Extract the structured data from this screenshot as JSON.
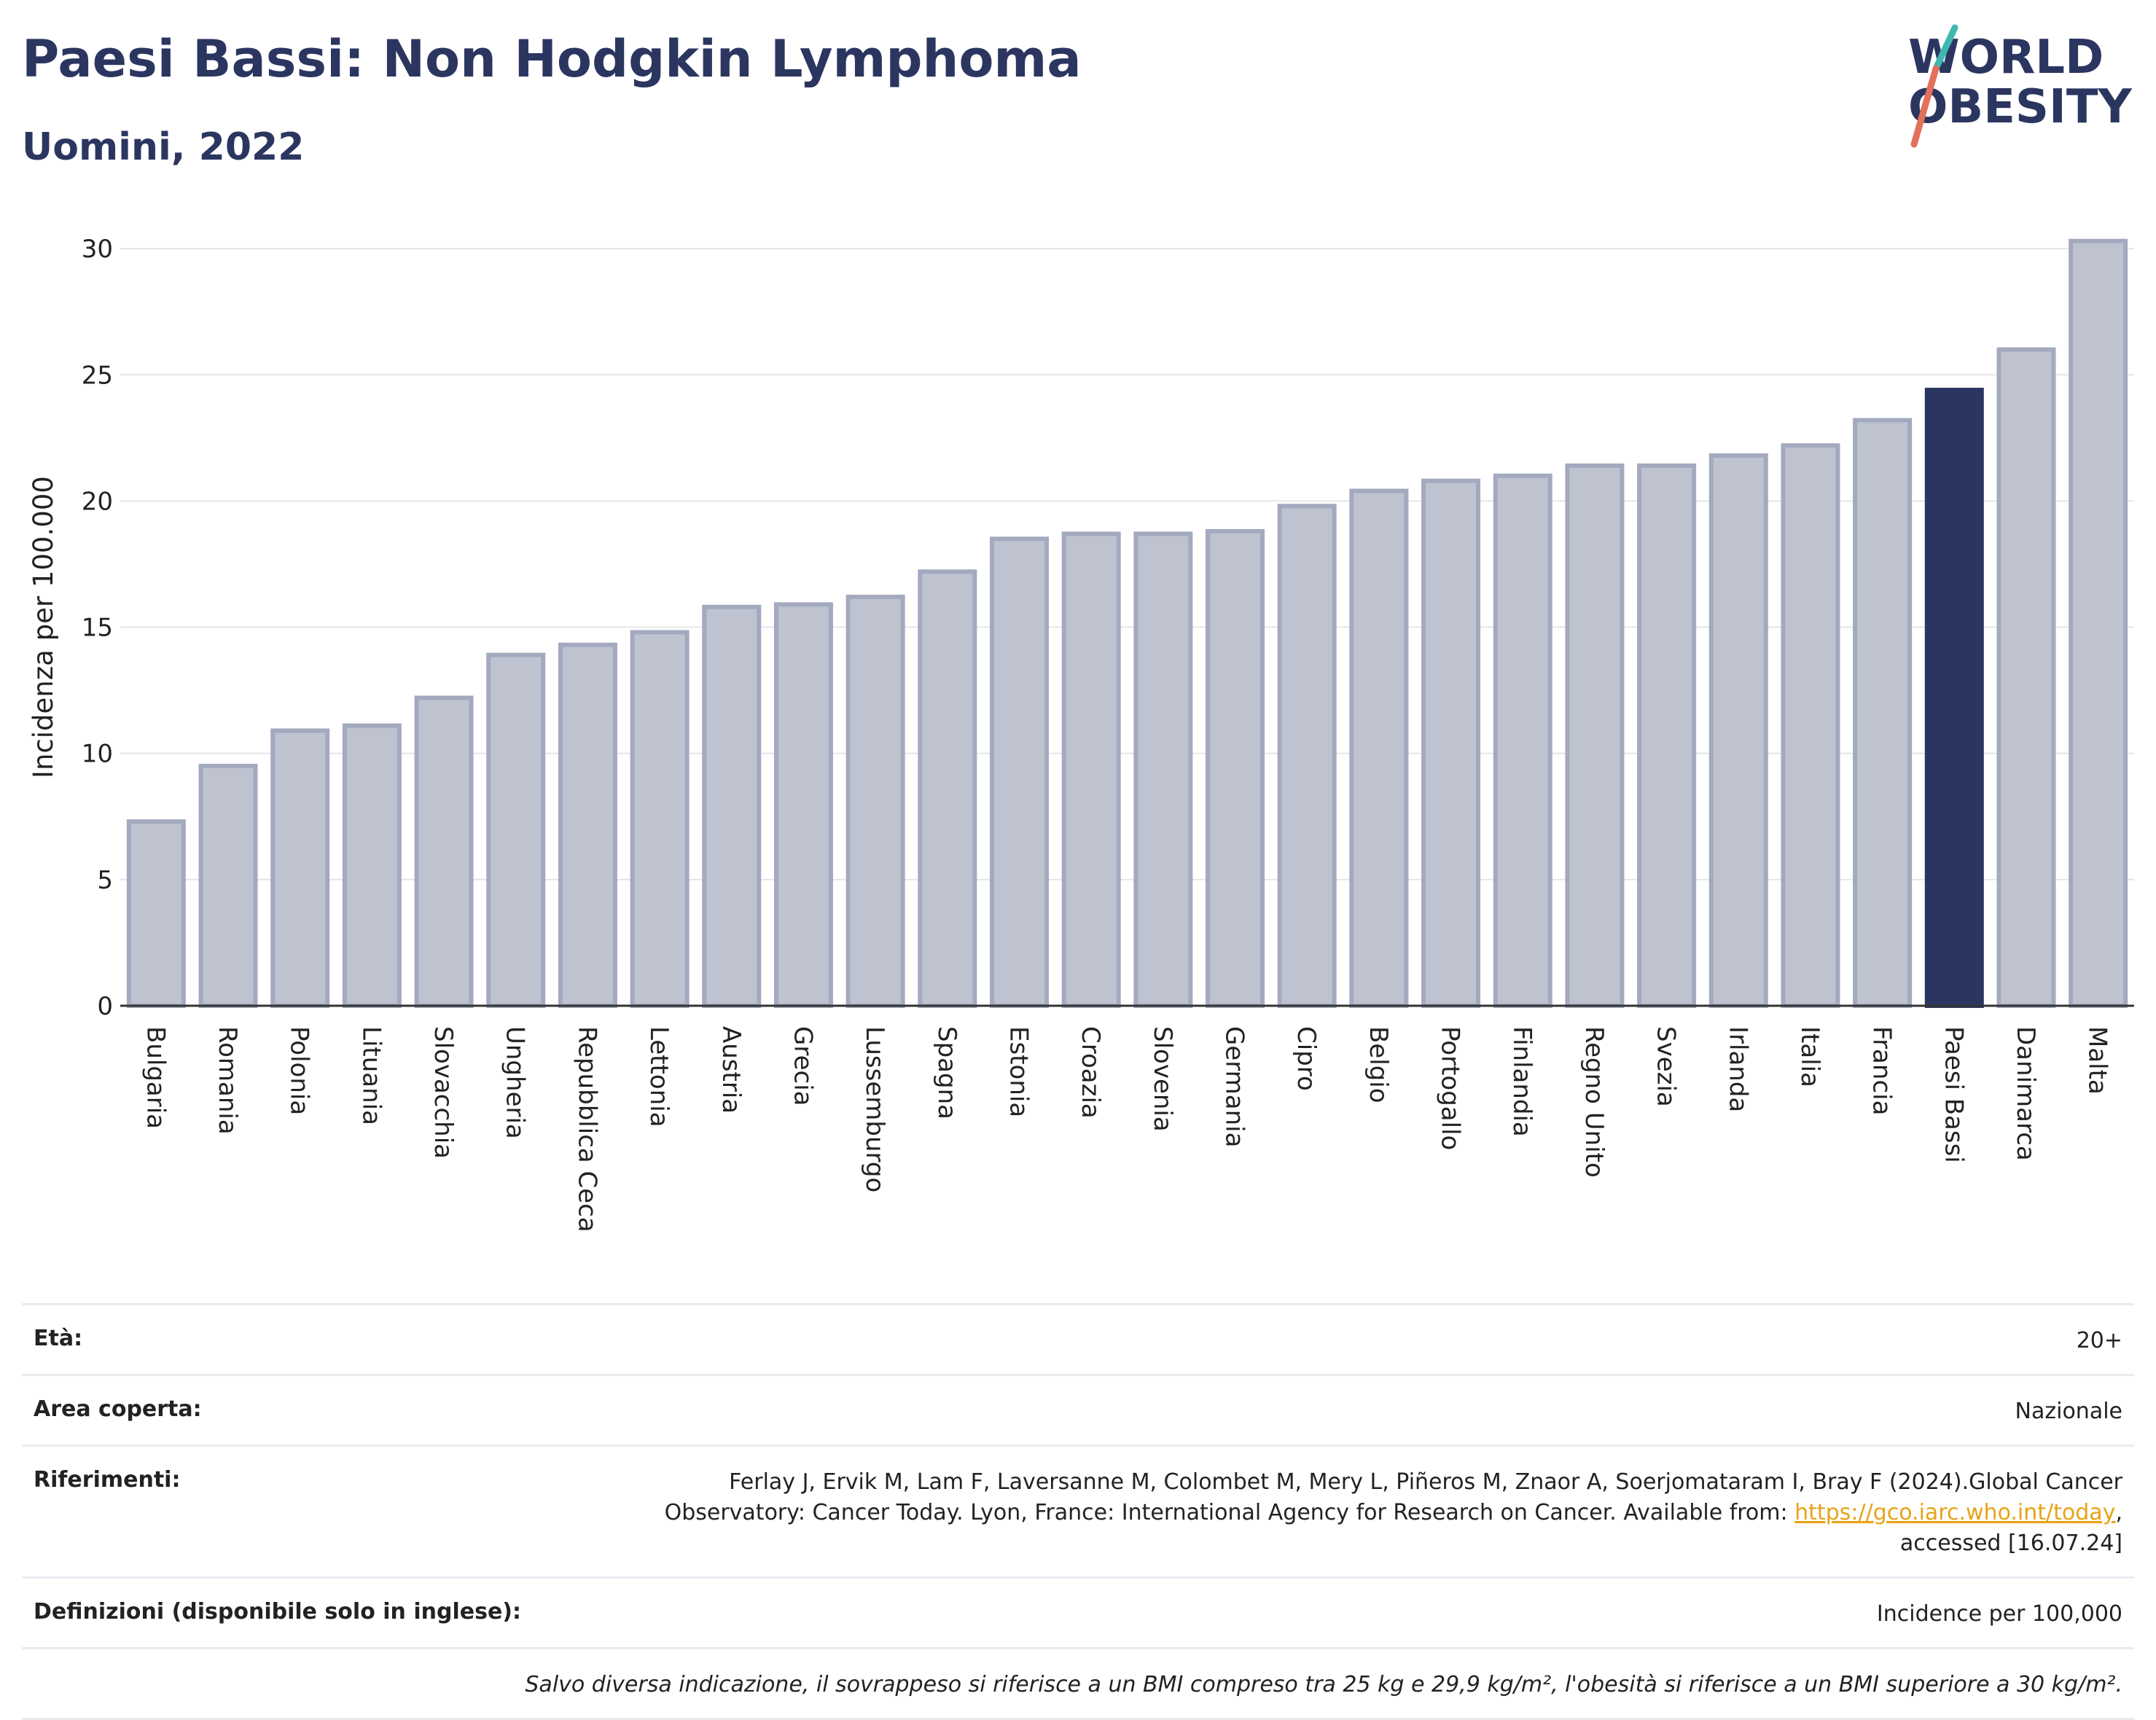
{
  "header": {
    "title": "Paesi Bassi: Non Hodgkin Lymphoma",
    "subtitle": "Uomini, 2022"
  },
  "logo": {
    "line1": "WORLD",
    "line2": "OBESITY",
    "accent_colors": [
      "#3fb8b0",
      "#e2705a"
    ]
  },
  "colors": {
    "bar_default": "#bfc3d0",
    "bar_stroke": "#a3a9be",
    "bar_highlight": "#2b3660",
    "title": "#2b3660",
    "link": "#e8a317"
  },
  "chart_data": {
    "type": "bar",
    "title": "Paesi Bassi: Non Hodgkin Lymphoma",
    "subtitle": "Uomini, 2022",
    "xlabel": "",
    "ylabel": "Incidenza per 100.000",
    "ylim": [
      0,
      30.5
    ],
    "yticks": [
      0,
      5,
      10,
      15,
      20,
      25,
      30
    ],
    "grid": true,
    "highlight": "Paesi Bassi",
    "categories": [
      "Bulgaria",
      "Romania",
      "Polonia",
      "Lituania",
      "Slovacchia",
      "Ungheria",
      "Repubblica Ceca",
      "Lettonia",
      "Austria",
      "Grecia",
      "Lussemburgo",
      "Spagna",
      "Estonia",
      "Croazia",
      "Slovenia",
      "Germania",
      "Cipro",
      "Belgio",
      "Portogallo",
      "Finlandia",
      "Regno Unito",
      "Svezia",
      "Irlanda",
      "Italia",
      "Francia",
      "Paesi Bassi",
      "Danimarca",
      "Malta"
    ],
    "values": [
      7.3,
      9.5,
      10.9,
      11.1,
      12.2,
      13.9,
      14.3,
      14.8,
      15.8,
      15.9,
      16.2,
      17.2,
      18.5,
      18.7,
      18.7,
      18.8,
      19.8,
      20.4,
      20.8,
      21.0,
      21.4,
      21.4,
      21.8,
      22.2,
      23.2,
      24.4,
      26.0,
      30.3
    ]
  },
  "info": {
    "age_label": "Età:",
    "age_value": "20+",
    "area_label": "Area coperta:",
    "area_value": "Nazionale",
    "refs_label": "Riferimenti:",
    "refs_line1": "Ferlay J, Ervik M, Lam F, Laversanne M, Colombet M, Mery L, Piñeros M, Znaor A, Soerjomataram I, Bray F (2024).Global Cancer",
    "refs_line2_pre": "Observatory: Cancer Today. Lyon, France: International Agency for Research on Cancer. Available from: ",
    "refs_link": "https://gco.iarc.who.int/today",
    "refs_line2_post": ",",
    "refs_line3": "accessed [16.07.24]",
    "defs_label": "Definizioni (disponibile solo in inglese):",
    "defs_value": "Incidence per 100,000",
    "note": "Salvo diversa indicazione, il sovrappeso si riferisce a un BMI compreso tra 25 kg e 29,9 kg/m², l'obesità si riferisce a un BMI superiore a 30 kg/m²."
  }
}
